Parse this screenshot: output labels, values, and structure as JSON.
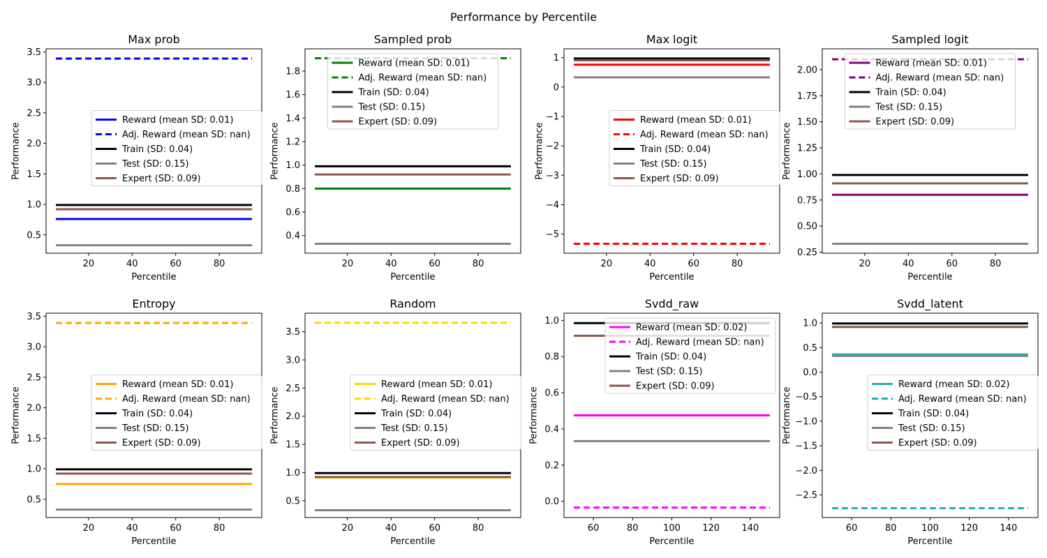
{
  "suptitle": "Performance by Percentile",
  "chart_data": [
    {
      "type": "line",
      "title": "Max prob",
      "xlabel": "Percentile",
      "ylabel": "Performance",
      "xlim": [
        0.5,
        99.5
      ],
      "ylim": [
        0.2,
        3.55
      ],
      "xticks": [
        20,
        40,
        60,
        80
      ],
      "yticks": [
        0.5,
        1.0,
        1.5,
        2.0,
        2.5,
        3.0,
        3.5
      ],
      "ytick_labels": [
        "0.5",
        "1.0",
        "1.5",
        "2.0",
        "2.5",
        "3.0",
        "3.5"
      ],
      "x_range": [
        5,
        95
      ],
      "legend_loc": "center right",
      "series": [
        {
          "name": "Reward (mean SD: 0.01)",
          "value": 0.76,
          "color": "#0000ff",
          "dashed": false
        },
        {
          "name": "Adj. Reward (mean SD: nan)",
          "value": 3.39,
          "color": "#0000ff",
          "dashed": true
        },
        {
          "name": "Train (SD: 0.04)",
          "value": 0.99,
          "color": "#000000",
          "dashed": false
        },
        {
          "name": "Test (SD: 0.15)",
          "value": 0.33,
          "color": "#808080",
          "dashed": false
        },
        {
          "name": "Expert (SD: 0.09)",
          "value": 0.92,
          "color": "#8c564b",
          "dashed": false
        }
      ]
    },
    {
      "type": "line",
      "title": "Sampled prob",
      "xlabel": "Percentile",
      "ylabel": "Performance",
      "xlim": [
        0.5,
        99.5
      ],
      "ylim": [
        0.25,
        1.99
      ],
      "xticks": [
        20,
        40,
        60,
        80
      ],
      "yticks": [
        0.4,
        0.6,
        0.8,
        1.0,
        1.2,
        1.4,
        1.6,
        1.8
      ],
      "ytick_labels": [
        "0.4",
        "0.6",
        "0.8",
        "1.0",
        "1.2",
        "1.4",
        "1.6",
        "1.8"
      ],
      "x_range": [
        5,
        95
      ],
      "legend_loc": "upper center",
      "series": [
        {
          "name": "Reward (mean SD: 0.01)",
          "value": 0.8,
          "color": "#008000",
          "dashed": false
        },
        {
          "name": "Adj. Reward (mean SD: nan)",
          "value": 1.91,
          "color": "#008000",
          "dashed": true
        },
        {
          "name": "Train (SD: 0.04)",
          "value": 0.99,
          "color": "#000000",
          "dashed": false
        },
        {
          "name": "Test (SD: 0.15)",
          "value": 0.33,
          "color": "#808080",
          "dashed": false
        },
        {
          "name": "Expert (SD: 0.09)",
          "value": 0.92,
          "color": "#8c564b",
          "dashed": false
        }
      ]
    },
    {
      "type": "line",
      "title": "Max logit",
      "xlabel": "Percentile",
      "ylabel": "Performance",
      "xlim": [
        0.5,
        99.5
      ],
      "ylim": [
        -5.65,
        1.3
      ],
      "xticks": [
        20,
        40,
        60,
        80
      ],
      "yticks": [
        -5,
        -4,
        -3,
        -2,
        -1,
        0,
        1
      ],
      "ytick_labels": [
        "−5",
        "−4",
        "−3",
        "−2",
        "−1",
        "0",
        "1"
      ],
      "x_range": [
        5,
        95
      ],
      "legend_loc": "center right",
      "series": [
        {
          "name": "Reward (mean SD: 0.01)",
          "value": 0.76,
          "color": "#ff0000",
          "dashed": false
        },
        {
          "name": "Adj. Reward (mean SD: nan)",
          "value": -5.33,
          "color": "#ff0000",
          "dashed": true
        },
        {
          "name": "Train (SD: 0.04)",
          "value": 0.97,
          "color": "#000000",
          "dashed": false
        },
        {
          "name": "Test (SD: 0.15)",
          "value": 0.33,
          "color": "#808080",
          "dashed": false
        },
        {
          "name": "Expert (SD: 0.09)",
          "value": 0.91,
          "color": "#8c564b",
          "dashed": false
        }
      ]
    },
    {
      "type": "line",
      "title": "Sampled logit",
      "xlabel": "Percentile",
      "ylabel": "Performance",
      "xlim": [
        0.5,
        99.5
      ],
      "ylim": [
        0.24,
        2.2
      ],
      "xticks": [
        20,
        40,
        60,
        80
      ],
      "yticks": [
        0.25,
        0.5,
        0.75,
        1.0,
        1.25,
        1.5,
        1.75,
        2.0
      ],
      "ytick_labels": [
        "0.25",
        "0.50",
        "0.75",
        "1.00",
        "1.25",
        "1.50",
        "1.75",
        "2.00"
      ],
      "x_range": [
        5,
        95
      ],
      "legend_loc": "upper center",
      "series": [
        {
          "name": "Reward (mean SD: 0.01)",
          "value": 0.8,
          "color": "#800080",
          "dashed": false
        },
        {
          "name": "Adj. Reward (mean SD: nan)",
          "value": 2.1,
          "color": "#800080",
          "dashed": true
        },
        {
          "name": "Train (SD: 0.04)",
          "value": 0.99,
          "color": "#000000",
          "dashed": false
        },
        {
          "name": "Test (SD: 0.15)",
          "value": 0.33,
          "color": "#808080",
          "dashed": false
        },
        {
          "name": "Expert (SD: 0.09)",
          "value": 0.91,
          "color": "#8c564b",
          "dashed": false
        }
      ]
    },
    {
      "type": "line",
      "title": "Entropy",
      "xlabel": "Percentile",
      "ylabel": "Performance",
      "xlim": [
        0.5,
        99.5
      ],
      "ylim": [
        0.2,
        3.55
      ],
      "xticks": [
        20,
        40,
        60,
        80
      ],
      "yticks": [
        0.5,
        1.0,
        1.5,
        2.0,
        2.5,
        3.0,
        3.5
      ],
      "ytick_labels": [
        "0.5",
        "1.0",
        "1.5",
        "2.0",
        "2.5",
        "3.0",
        "3.5"
      ],
      "x_range": [
        5,
        95
      ],
      "legend_loc": "center right",
      "series": [
        {
          "name": "Reward (mean SD: 0.01)",
          "value": 0.75,
          "color": "#ffa500",
          "dashed": false
        },
        {
          "name": "Adj. Reward (mean SD: nan)",
          "value": 3.39,
          "color": "#ffa500",
          "dashed": true
        },
        {
          "name": "Train (SD: 0.04)",
          "value": 0.99,
          "color": "#000000",
          "dashed": false
        },
        {
          "name": "Test (SD: 0.15)",
          "value": 0.33,
          "color": "#808080",
          "dashed": false
        },
        {
          "name": "Expert (SD: 0.09)",
          "value": 0.92,
          "color": "#8c564b",
          "dashed": false
        }
      ]
    },
    {
      "type": "line",
      "title": "Random",
      "xlabel": "Percentile",
      "ylabel": "Performance",
      "xlim": [
        0.5,
        99.5
      ],
      "ylim": [
        0.2,
        3.83
      ],
      "xticks": [
        20,
        40,
        60,
        80
      ],
      "yticks": [
        0.5,
        1.0,
        1.5,
        2.0,
        2.5,
        3.0,
        3.5
      ],
      "ytick_labels": [
        "0.5",
        "1.0",
        "1.5",
        "2.0",
        "2.5",
        "3.0",
        "3.5"
      ],
      "x_range": [
        5,
        95
      ],
      "legend_loc": "center right",
      "series": [
        {
          "name": "Reward (mean SD: 0.01)",
          "value": 0.91,
          "color": "#ffd700",
          "dashed": false
        },
        {
          "name": "Adj. Reward (mean SD: nan)",
          "value": 3.66,
          "color": "#ffd700",
          "dashed": true
        },
        {
          "name": "Train (SD: 0.04)",
          "value": 0.99,
          "color": "#000000",
          "dashed": false
        },
        {
          "name": "Test (SD: 0.15)",
          "value": 0.33,
          "color": "#808080",
          "dashed": false
        },
        {
          "name": "Expert (SD: 0.09)",
          "value": 0.92,
          "color": "#8c564b",
          "dashed": false
        }
      ]
    },
    {
      "type": "line",
      "title": "Svdd_raw",
      "xlabel": "Percentile",
      "ylabel": "Performance",
      "xlim": [
        45,
        155
      ],
      "ylim": [
        -0.09,
        1.04
      ],
      "xticks": [
        60,
        80,
        100,
        120,
        140
      ],
      "yticks": [
        0.0,
        0.2,
        0.4,
        0.6,
        0.8,
        1.0
      ],
      "ytick_labels": [
        "0.0",
        "0.2",
        "0.4",
        "0.6",
        "0.8",
        "1.0"
      ],
      "x_range": [
        50,
        150
      ],
      "legend_loc": "upper right",
      "series": [
        {
          "name": "Reward (mean SD: 0.02)",
          "value": 0.475,
          "color": "#ff00ff",
          "dashed": false
        },
        {
          "name": "Adj. Reward (mean SD: nan)",
          "value": -0.035,
          "color": "#ff00ff",
          "dashed": true
        },
        {
          "name": "Train (SD: 0.04)",
          "value": 0.985,
          "color": "#000000",
          "dashed": false
        },
        {
          "name": "Test (SD: 0.15)",
          "value": 0.333,
          "color": "#808080",
          "dashed": false
        },
        {
          "name": "Expert (SD: 0.09)",
          "value": 0.915,
          "color": "#8c564b",
          "dashed": false
        }
      ]
    },
    {
      "type": "line",
      "title": "Svdd_latent",
      "xlabel": "Percentile",
      "ylabel": "Performance",
      "xlim": [
        45,
        155
      ],
      "ylim": [
        -2.96,
        1.2
      ],
      "xticks": [
        60,
        80,
        100,
        120,
        140
      ],
      "yticks": [
        -2.5,
        -2.0,
        -1.5,
        -1.0,
        -0.5,
        0.0,
        0.5,
        1.0
      ],
      "ytick_labels": [
        "−2.5",
        "−2.0",
        "−1.5",
        "−1.0",
        "−0.5",
        "0.0",
        "0.5",
        "1.0"
      ],
      "x_range": [
        50,
        150
      ],
      "legend_loc": "center right",
      "series": [
        {
          "name": "Reward (mean SD: 0.02)",
          "value": 0.36,
          "color": "#20b2aa",
          "dashed": false
        },
        {
          "name": "Adj. Reward (mean SD: nan)",
          "value": -2.77,
          "color": "#20b2aa",
          "dashed": true
        },
        {
          "name": "Train (SD: 0.04)",
          "value": 0.99,
          "color": "#000000",
          "dashed": false
        },
        {
          "name": "Test (SD: 0.15)",
          "value": 0.33,
          "color": "#808080",
          "dashed": false
        },
        {
          "name": "Expert (SD: 0.09)",
          "value": 0.92,
          "color": "#8c564b",
          "dashed": false
        }
      ]
    }
  ]
}
